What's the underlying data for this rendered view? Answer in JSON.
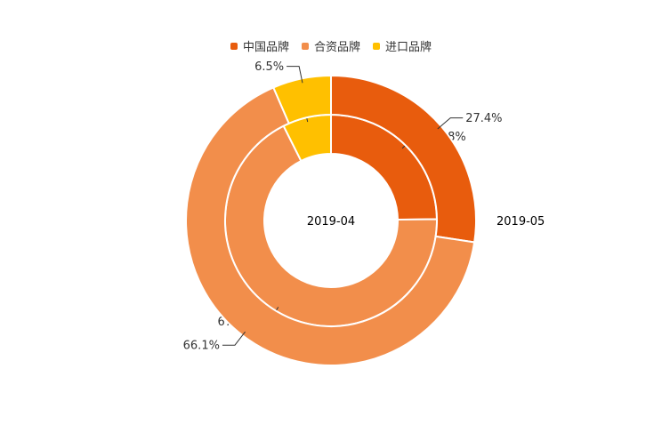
{
  "legend": {
    "items": [
      {
        "label": "中国品牌",
        "color": "#e85c0d"
      },
      {
        "label": "合资品牌",
        "color": "#f28e4b"
      },
      {
        "label": "进口品牌",
        "color": "#ffc000"
      }
    ]
  },
  "chart_data": {
    "type": "pie",
    "variant": "nested-donut",
    "categories": [
      "中国品牌",
      "合资品牌",
      "进口品牌"
    ],
    "colors": [
      "#e85c0d",
      "#f28e4b",
      "#ffc000"
    ],
    "series": [
      {
        "name": "2019-04",
        "ring": "inner",
        "values": [
          24.8,
          67.8,
          7.4
        ],
        "labels": [
          "24.8%",
          "67.8%",
          "7.4%"
        ]
      },
      {
        "name": "2019-05",
        "ring": "outer",
        "values": [
          27.4,
          66.1,
          6.5
        ],
        "labels": [
          "27.4%",
          "66.1%",
          "6.5%"
        ]
      }
    ],
    "legend_position": "top-center"
  }
}
